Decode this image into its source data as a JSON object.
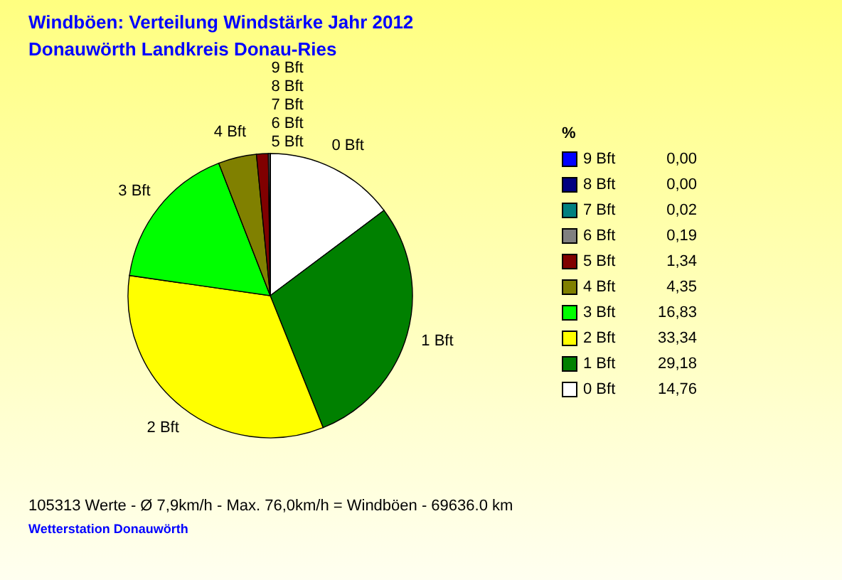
{
  "chart_data": {
    "type": "pie",
    "title": "Windböen: Verteilung Windstärke  Jahr 2012",
    "subtitle": "Donauwörth Landkreis Donau-Ries",
    "categories": [
      "0 Bft",
      "1 Bft",
      "2 Bft",
      "3 Bft",
      "4 Bft",
      "5 Bft",
      "6 Bft",
      "7 Bft",
      "8 Bft",
      "9 Bft"
    ],
    "values": [
      14.76,
      29.18,
      33.34,
      16.83,
      4.35,
      1.34,
      0.19,
      0.02,
      0,
      0
    ],
    "value_labels": [
      "14,76",
      "29,18",
      "33,34",
      "16,83",
      "4,35",
      "1,34",
      "0,19",
      "0,02",
      "0,00",
      "0,00"
    ],
    "colors": [
      "#ffffff",
      "#008000",
      "#ffff00",
      "#00ff00",
      "#808000",
      "#800000",
      "#808080",
      "#008080",
      "#000080",
      "#0000ff"
    ],
    "legend": "right",
    "legend_title": "%",
    "annotations": [
      "105313 Werte   -   Ø 7,9km/h  -  Max. 76,0km/h = Windböen   -   69636.0 km",
      "Wetterstation Donauwörth"
    ]
  }
}
